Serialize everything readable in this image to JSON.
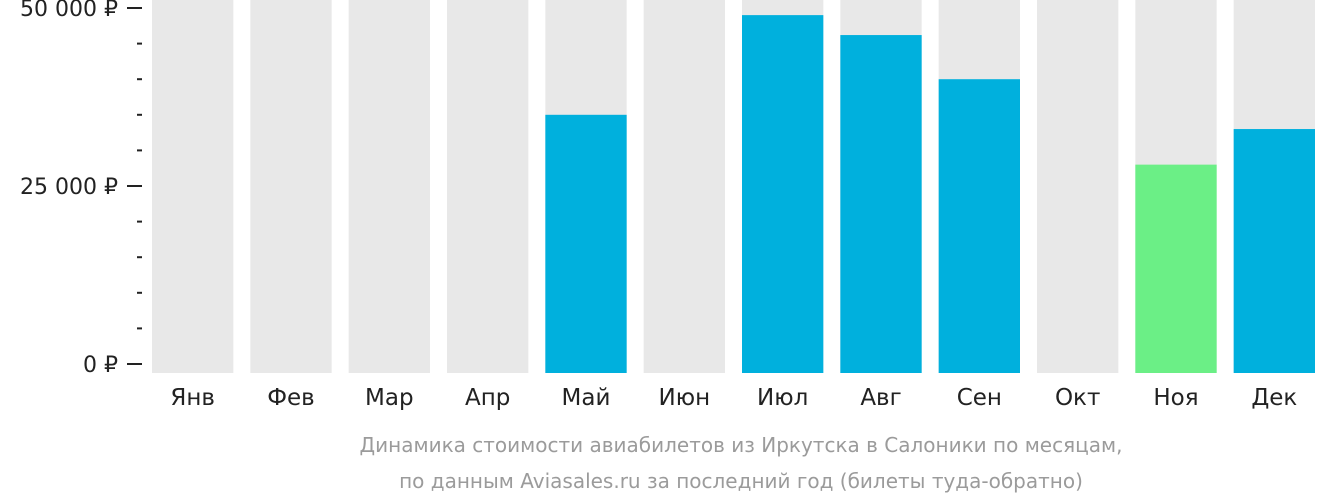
{
  "chart_data": {
    "type": "bar",
    "categories": [
      "Янв",
      "Фев",
      "Мар",
      "Апр",
      "Май",
      "Июн",
      "Июл",
      "Авг",
      "Сен",
      "Окт",
      "Ноя",
      "Дек"
    ],
    "values": [
      null,
      null,
      null,
      null,
      35000,
      null,
      49000,
      46200,
      40000,
      null,
      28000,
      33000
    ],
    "highlight_index": 10,
    "ylim": [
      0,
      51000
    ],
    "yticks": [
      {
        "value": 0,
        "label": "0 ₽"
      },
      {
        "value": 25000,
        "label": "25 000 ₽"
      },
      {
        "value": 50000,
        "label": "50 000 ₽"
      }
    ],
    "minor_tick_step": 5000,
    "caption_lines": [
      "Динамика стоимости авиабилетов из Иркутска в Салоники по месяцам,",
      "по данным Aviasales.ru за последний год (билеты туда-обратно)"
    ],
    "colors": {
      "background_bar": "#e8e8e8",
      "bar": "#00b0dd",
      "highlight_bar": "#6bef86",
      "axis": "#222222",
      "caption": "#9b9b9b"
    }
  }
}
